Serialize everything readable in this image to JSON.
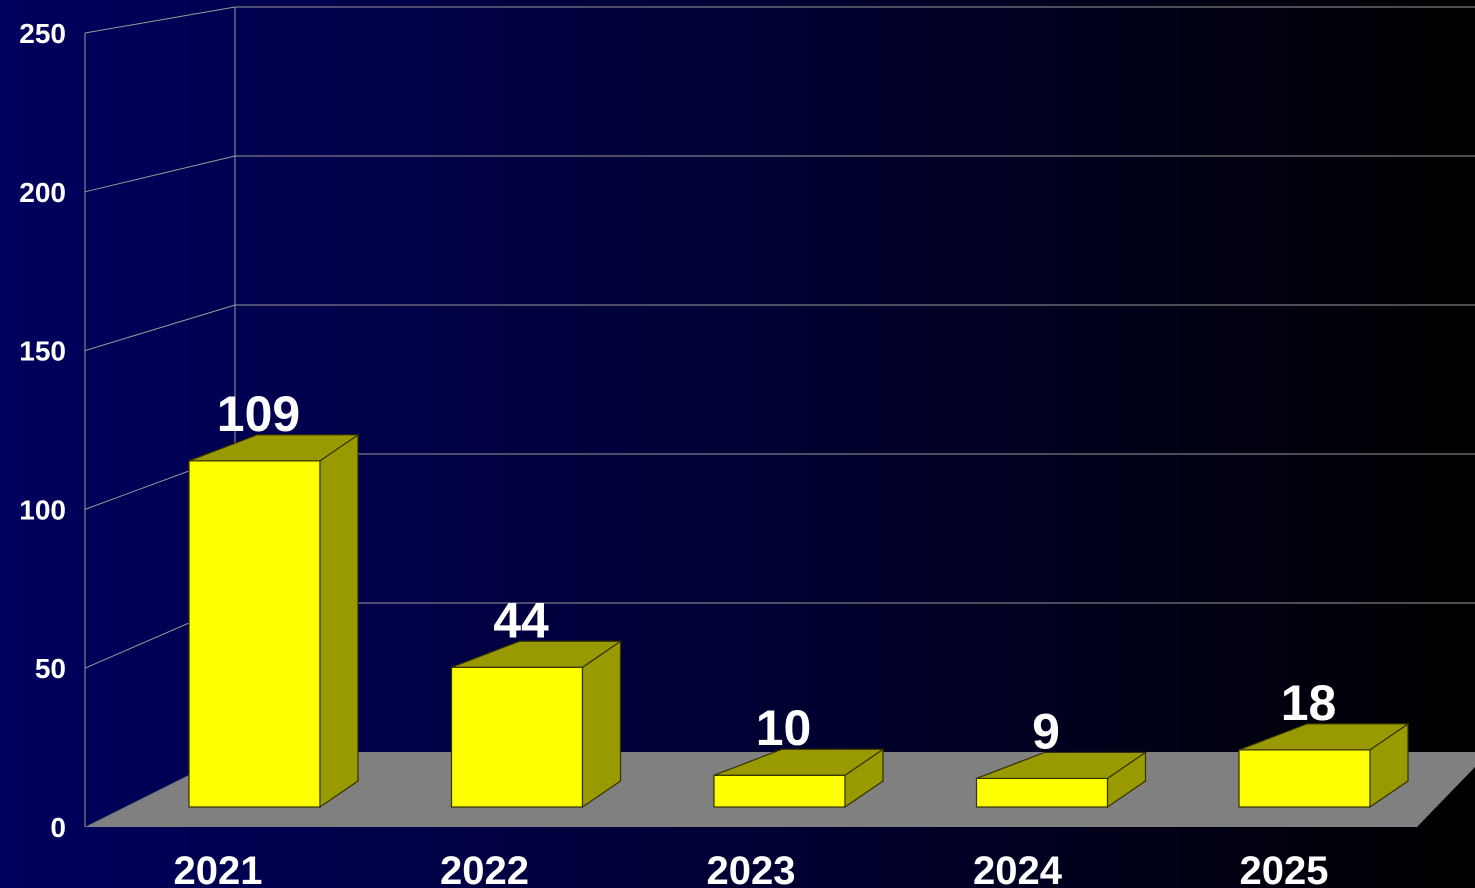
{
  "chart_data": {
    "type": "bar",
    "categories": [
      "2021",
      "2022",
      "2023",
      "2024",
      "2025"
    ],
    "values": [
      109,
      44,
      10,
      9,
      18
    ],
    "data_labels": [
      "109",
      "44",
      "10",
      "9",
      "18"
    ],
    "title": "",
    "xlabel": "",
    "ylabel": "",
    "ylim": [
      0,
      250
    ],
    "yticks": [
      0,
      50,
      100,
      150,
      200,
      250
    ],
    "ytick_labels": [
      "0",
      "50",
      "100",
      "150",
      "200",
      "250"
    ],
    "grid": true,
    "style": "3d-bar",
    "colors": {
      "bar_front": "#ffff00",
      "bar_side": "#999900",
      "floor": "#808080",
      "grid": "#9a9a9a",
      "text": "#ffffff"
    }
  }
}
